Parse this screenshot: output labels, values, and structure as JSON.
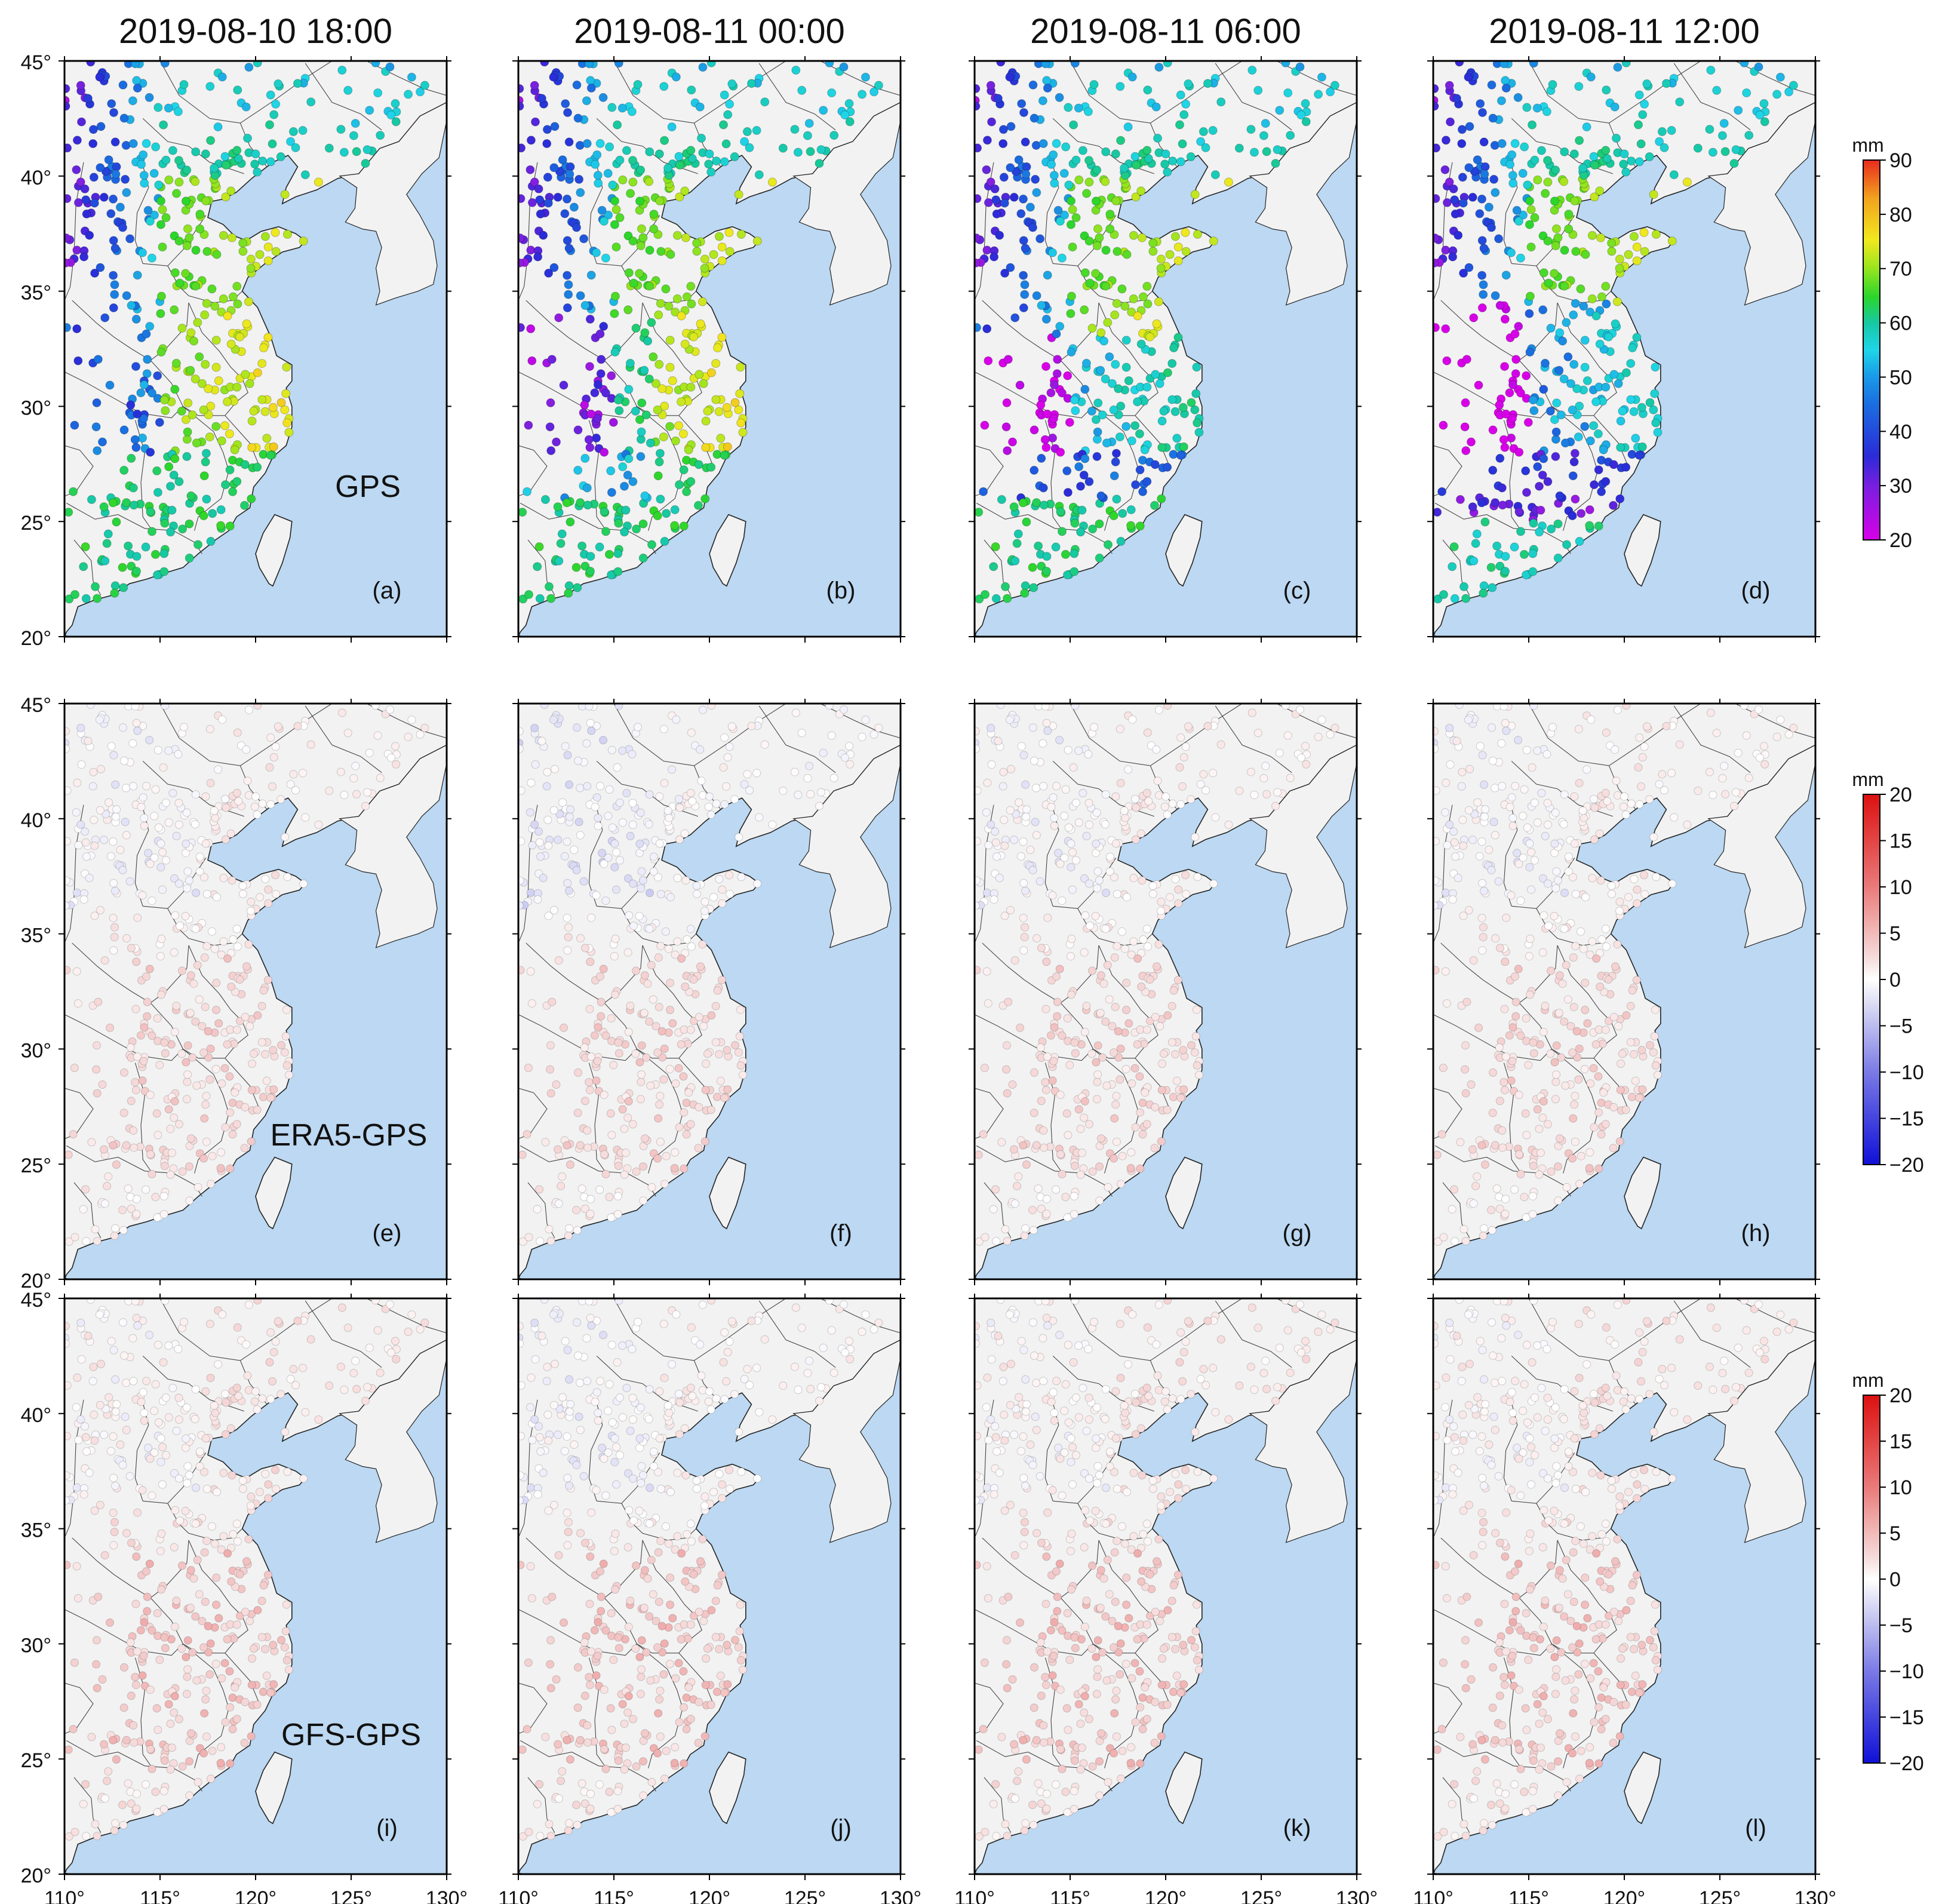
{
  "figure": {
    "column_titles": [
      "2019-08-10 18:00",
      "2019-08-11 00:00",
      "2019-08-11 06:00",
      "2019-08-11 12:00"
    ],
    "row_labels": [
      "GPS",
      "ERA5-GPS",
      "GFS-GPS"
    ],
    "panel_letters": [
      [
        "(a)",
        "(b)",
        "(c)",
        "(d)"
      ],
      [
        "(e)",
        "(f)",
        "(g)",
        "(h)"
      ],
      [
        "(i)",
        "(j)",
        "(k)",
        "(l)"
      ]
    ],
    "lat_ticks": [
      "20°",
      "25°",
      "30°",
      "35°",
      "40°",
      "45°"
    ],
    "lon_ticks": [
      "110°",
      "115°",
      "120°",
      "125°",
      "130°"
    ],
    "colorbars": [
      {
        "unit": "mm",
        "ticks": [
          "20",
          "30",
          "40",
          "50",
          "60",
          "70",
          "80",
          "90"
        ]
      },
      {
        "unit": "mm",
        "ticks": [
          "20",
          "15",
          "10",
          "5",
          "0",
          "−5",
          "−10",
          "−15",
          "−20"
        ]
      },
      {
        "unit": "mm",
        "ticks": [
          "20",
          "15",
          "10",
          "5",
          "0",
          "−5",
          "−10",
          "−15",
          "−20"
        ]
      }
    ]
  },
  "map_data": {
    "lon_range": [
      110,
      130
    ],
    "lat_range": [
      20,
      45
    ],
    "pwv_scale_mm": [
      20,
      90
    ],
    "diff_scale_mm": [
      -20,
      20
    ]
  },
  "colors": {
    "sea": "#bcd8f2",
    "land": "#f2f2f2",
    "pwv_scale": [
      "#d800e8",
      "#8a1ee0",
      "#2b2bd8",
      "#1a6fe0",
      "#1fd5e8",
      "#16c8a4",
      "#2bd62b",
      "#9ee51e",
      "#f2e81e",
      "#f2a21e",
      "#e82a1e"
    ],
    "diff_scale": [
      "#1a1adc",
      "#7a7ae6",
      "#d6d6f4",
      "#ffffff",
      "#f4d0d0",
      "#ea7a7a",
      "#dc1a1a"
    ]
  }
}
